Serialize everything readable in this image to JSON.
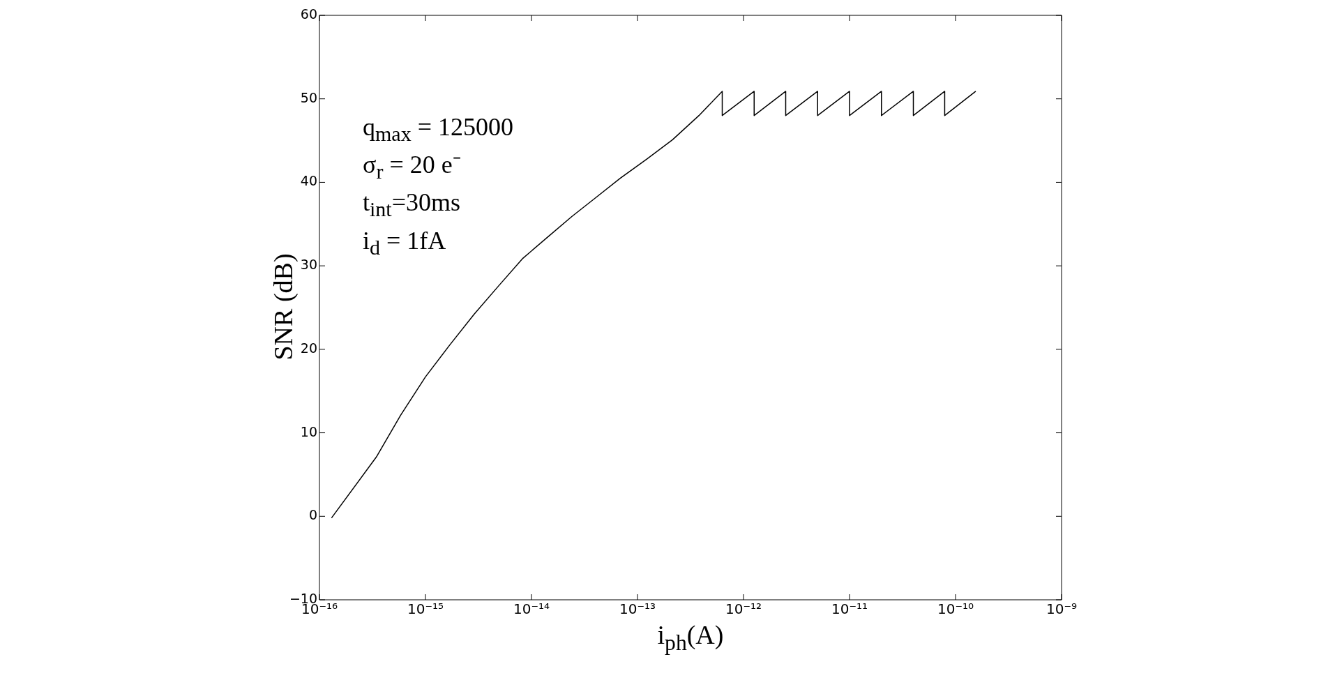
{
  "chart_data": {
    "type": "line",
    "xlabel": "i$_{ph}$(A)",
    "ylabel": "SNR (dB)",
    "annotations": [
      "q$_{max}$ = 125000",
      "σ$_{r}$ = 20 e⁻",
      "t$_{int}$=30ms",
      "i$_{d}$ = 1fA"
    ],
    "log": "x",
    "grid": false,
    "legend": false,
    "marker": "none",
    "line_style": "solid",
    "xlim": [
      1e-16,
      1e-09
    ],
    "xticks": [
      {
        "value": 1e-16,
        "label": "10⁻¹⁶"
      },
      {
        "value": 1e-15,
        "label": "10⁻¹⁵"
      },
      {
        "value": 1e-14,
        "label": "10⁻¹⁴"
      },
      {
        "value": 1e-13,
        "label": "10⁻¹³"
      },
      {
        "value": 1e-12,
        "label": "10⁻¹²"
      },
      {
        "value": 1e-11,
        "label": "10⁻¹¹"
      },
      {
        "value": 1e-10,
        "label": "10⁻¹⁰"
      },
      {
        "value": 1e-09,
        "label": "10⁻⁹"
      }
    ],
    "ylim": [
      -10,
      60
    ],
    "yticks": [
      -10,
      0,
      10,
      20,
      30,
      40,
      50,
      60
    ],
    "series": [
      {
        "color": "#000000",
        "x": [
          1.3e-16,
          3.44e-16,
          5.83e-16,
          1e-15,
          1.69e-15,
          2.88e-15,
          4.9e-15,
          8.3e-15,
          1.41e-14,
          2.4e-14,
          4.07e-14,
          6.9e-14,
          1.23e-13,
          2.14e-13,
          3.8e-13,
          6.3e-13,
          6.3e-13,
          1.26e-12,
          1.26e-12,
          2.5e-12,
          2.5e-12,
          5e-12,
          5e-12,
          1e-11,
          1e-11,
          2e-11,
          2e-11,
          4e-11,
          4e-11,
          7.9e-11,
          7.9e-11,
          1.55e-10
        ],
        "values": [
          -0.2,
          7.1,
          12.1,
          16.7,
          20.5,
          24.2,
          27.6,
          30.9,
          33.4,
          35.9,
          38.2,
          40.5,
          42.8,
          45.1,
          48.0,
          50.9,
          48.0,
          50.9,
          48.0,
          50.9,
          48.0,
          50.9,
          48.0,
          50.9,
          48.0,
          50.9,
          48.0,
          50.9,
          48.0,
          50.9,
          48.0,
          50.9
        ]
      }
    ]
  }
}
